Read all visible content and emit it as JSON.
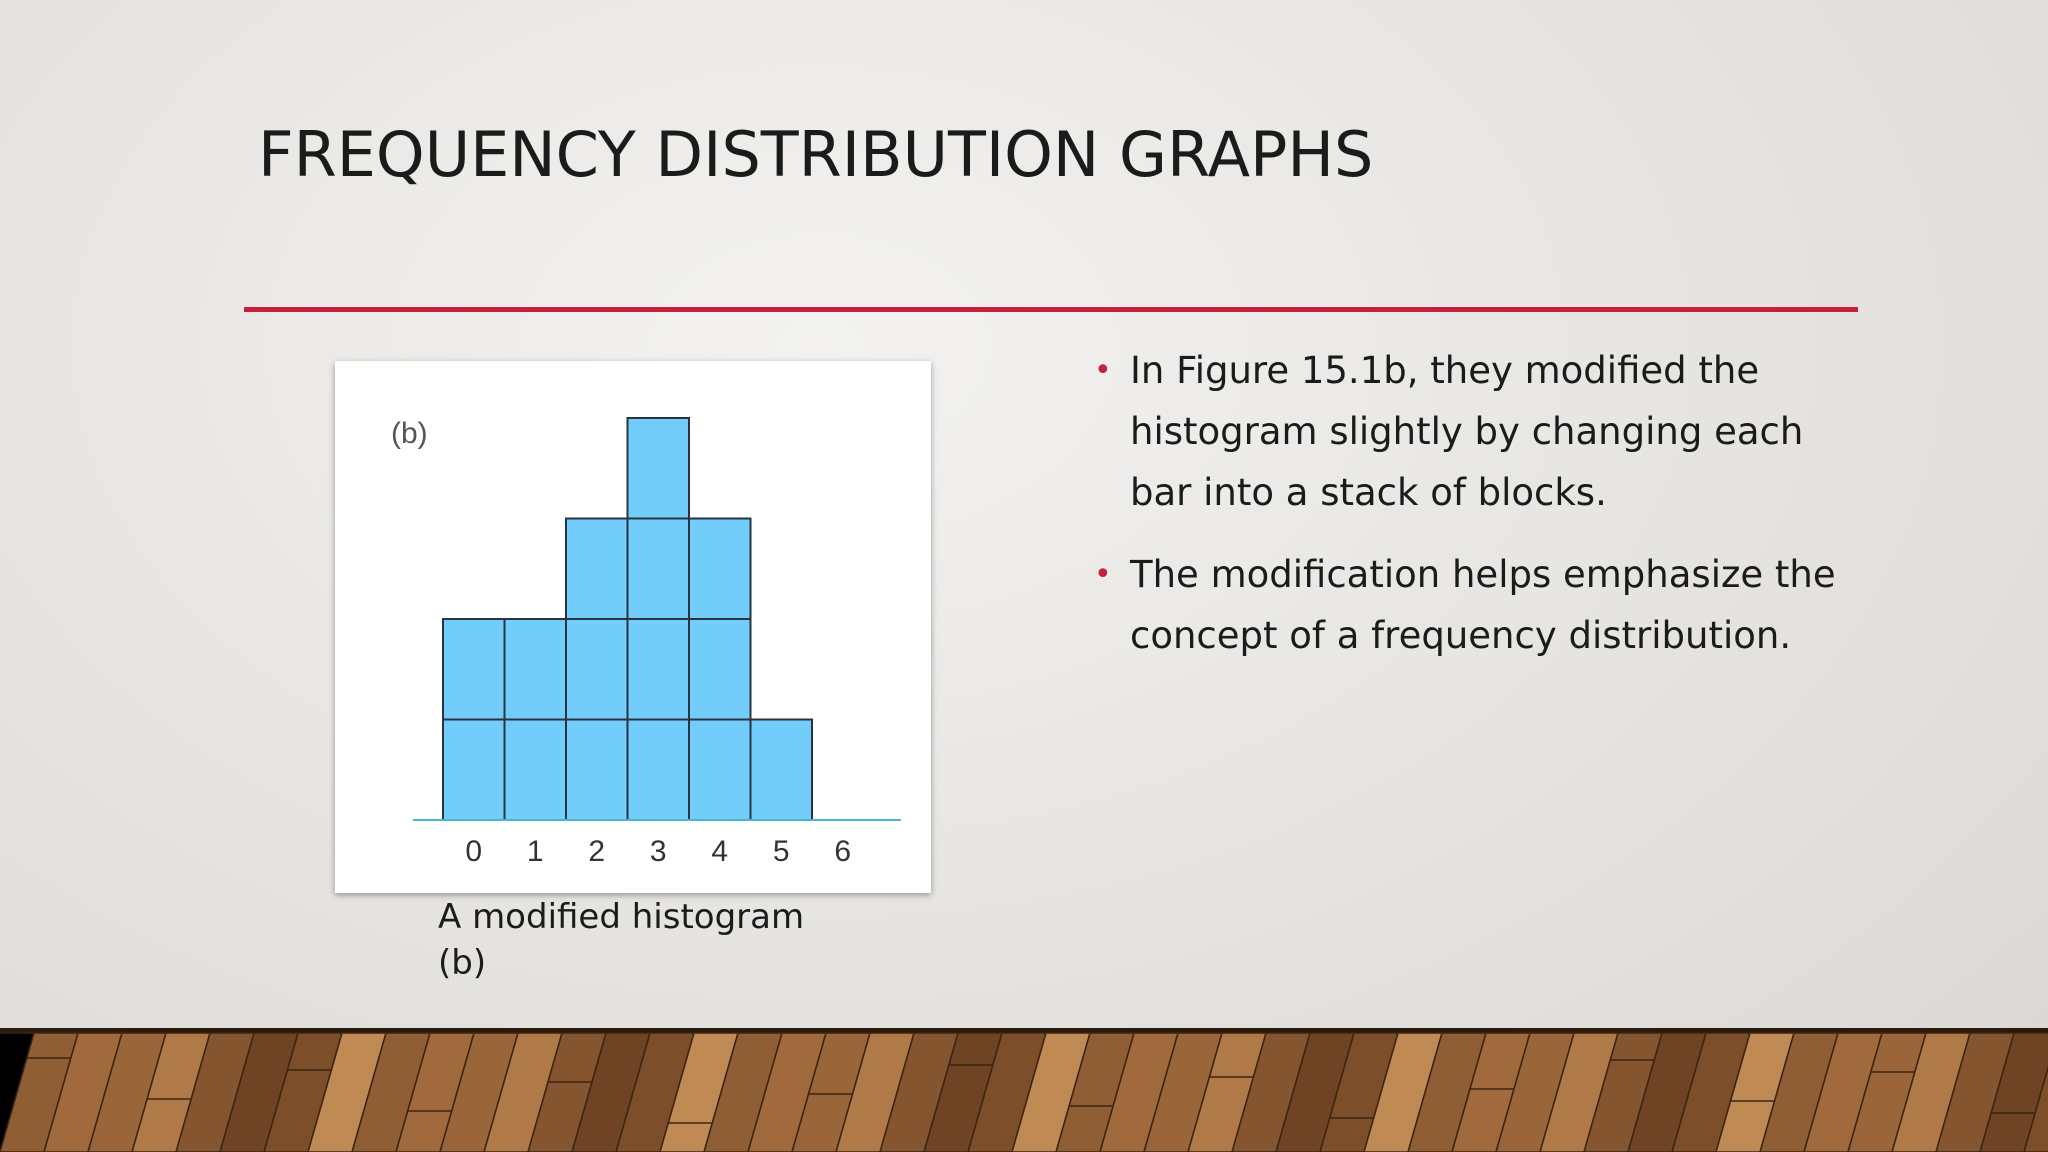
{
  "slide": {
    "title": "FREQUENCY DISTRIBUTION GRAPHS",
    "accent_color": "#c4213f",
    "caption_line1": "A modified histogram",
    "caption_line2": "(b)",
    "bullets": [
      "In Figure 15.1b, they modified the histogram slightly by changing each bar into a stack of blocks.",
      "The modification helps emphasize the concept of a frequency distribution."
    ]
  },
  "chart_data": {
    "type": "bar",
    "panel_label": "(b)",
    "categories": [
      "0",
      "1",
      "2",
      "3",
      "4",
      "5",
      "6"
    ],
    "values": [
      2,
      2,
      3,
      4,
      3,
      1,
      0
    ],
    "xlabel": "",
    "ylabel": "",
    "grid": false,
    "bar_color": "#72cdfa",
    "block_edge_color": "#2a3440",
    "baseline_color": "#49b7c7"
  }
}
